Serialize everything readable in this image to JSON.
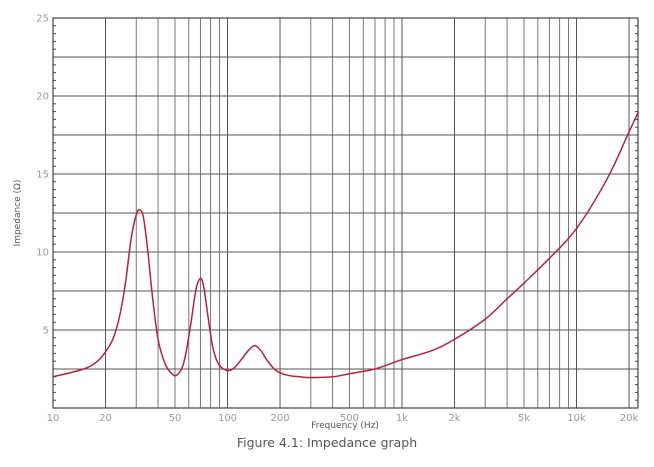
{
  "caption": "Figure 4.1: Impedance graph",
  "chart_data": {
    "type": "line",
    "title": "",
    "xlabel": "Frequency (Hz)",
    "ylabel": "Impedance (Ω)",
    "xscale": "log",
    "xlim": [
      10,
      22700
    ],
    "ylim": [
      0,
      25
    ],
    "grid": true,
    "legend": null,
    "x_ticks": [
      {
        "value": 10,
        "label": "10"
      },
      {
        "value": 20,
        "label": "20"
      },
      {
        "value": 50,
        "label": "50"
      },
      {
        "value": 100,
        "label": "100"
      },
      {
        "value": 200,
        "label": "200"
      },
      {
        "value": 500,
        "label": "500"
      },
      {
        "value": 1000,
        "label": "1k"
      },
      {
        "value": 2000,
        "label": "2k"
      },
      {
        "value": 5000,
        "label": "5k"
      },
      {
        "value": 10000,
        "label": "10k"
      },
      {
        "value": 20000,
        "label": "20k"
      }
    ],
    "x_gridlines": [
      20,
      30,
      40,
      50,
      60,
      70,
      80,
      90,
      100,
      200,
      300,
      400,
      500,
      600,
      700,
      800,
      900,
      1000,
      2000,
      3000,
      4000,
      5000,
      6000,
      7000,
      8000,
      9000,
      10000,
      20000
    ],
    "y_ticks": [
      {
        "value": 5,
        "label": "5"
      },
      {
        "value": 10,
        "label": "10"
      },
      {
        "value": 15,
        "label": "15"
      },
      {
        "value": 20,
        "label": "20"
      },
      {
        "value": 25,
        "label": "25"
      }
    ],
    "y_gridlines": [
      2.5,
      5,
      7.5,
      10,
      12.5,
      15,
      17.5,
      20,
      22.5
    ],
    "series": [
      {
        "name": "Impedance",
        "color": "#b5253a",
        "x": [
          10,
          15,
          18,
          20,
          22,
          24,
          26,
          28,
          30,
          31.5,
          33,
          35,
          37,
          40,
          44,
          48,
          51,
          55,
          58,
          62,
          66,
          70,
          73,
          77,
          82,
          88,
          95,
          102,
          110,
          120,
          132,
          143,
          155,
          170,
          190,
          220,
          260,
          300,
          400,
          500,
          700,
          1000,
          1500,
          2000,
          3000,
          4000,
          5000,
          7000,
          10000,
          15000,
          20000,
          22700
        ],
        "y": [
          2.0,
          2.5,
          3.0,
          3.6,
          4.4,
          5.8,
          8.0,
          10.8,
          12.4,
          12.7,
          12.2,
          10.0,
          7.3,
          4.4,
          2.8,
          2.2,
          2.1,
          2.6,
          3.6,
          5.6,
          7.6,
          8.3,
          7.8,
          6.0,
          4.0,
          2.9,
          2.5,
          2.4,
          2.6,
          3.1,
          3.7,
          4.0,
          3.7,
          3.0,
          2.4,
          2.1,
          2.0,
          1.95,
          2.0,
          2.2,
          2.5,
          3.1,
          3.7,
          4.4,
          5.7,
          7.0,
          8.0,
          9.6,
          11.5,
          14.7,
          17.7,
          19.0
        ]
      }
    ]
  }
}
